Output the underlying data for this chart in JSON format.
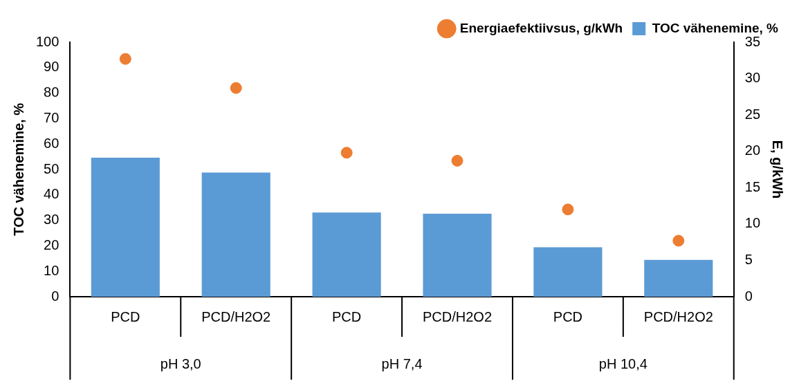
{
  "chart_data": {
    "type": "bar",
    "categories": [
      "PCD",
      "PCD/H2O2",
      "PCD",
      "PCD/H2O2",
      "PCD",
      "PCD/H2O2"
    ],
    "series": [
      {
        "name": "TOC vähenemine, %",
        "color": "#5b9bd5",
        "values": [
          54.6,
          48.8,
          33.1,
          32.6,
          19.4,
          14.5
        ]
      },
      {
        "name": "Energiaefektiivsus, g/kWh",
        "type": "scatter",
        "axis": "y2",
        "color": "#ed7d31",
        "values": [
          32.7,
          28.7,
          19.8,
          18.7,
          12.0,
          7.7
        ]
      }
    ],
    "ylabel": "TOC vähenemine, %",
    "y2label": "E, g/kWh",
    "ylim": [
      0,
      100
    ],
    "yticks": [
      0,
      10,
      20,
      30,
      40,
      50,
      60,
      70,
      80,
      90,
      100
    ],
    "y2lim": [
      0,
      35
    ],
    "y2ticks": [
      0,
      5,
      10,
      15,
      20,
      25,
      30,
      35
    ],
    "annotations": [
      "pH 3,0",
      "pH 7,4",
      "pH 10,4"
    ],
    "grid": false,
    "legend": "top right",
    "marker": "circle"
  }
}
